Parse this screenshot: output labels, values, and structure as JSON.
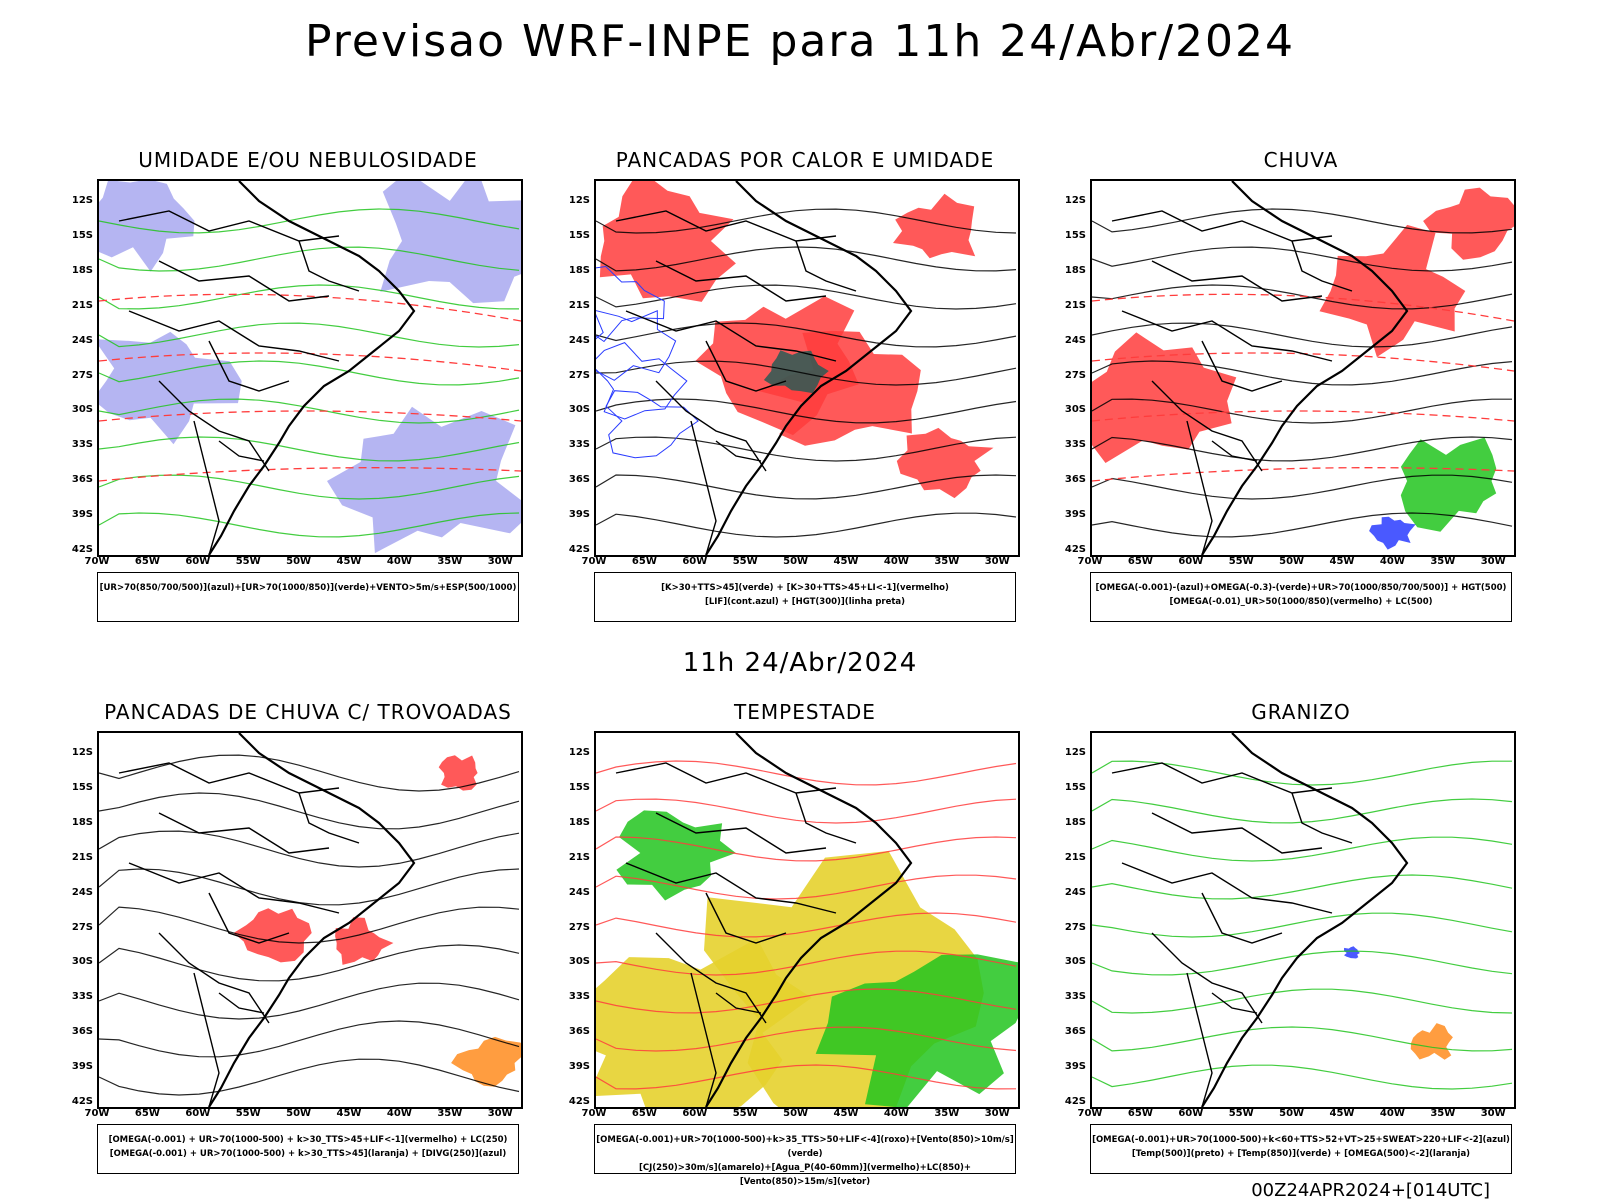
{
  "header": {
    "title": "Previsao WRF-INPE  para 11h 24/Abr/2024",
    "subtitle": "11h 24/Abr/2024",
    "footer": "00Z24APR2024+[014UTC]"
  },
  "axes": {
    "lat_labels": [
      "12S",
      "15S",
      "18S",
      "21S",
      "24S",
      "27S",
      "30S",
      "33S",
      "36S",
      "39S",
      "42S"
    ],
    "lon_labels": [
      "70W",
      "65W",
      "60W",
      "55W",
      "50W",
      "45W",
      "40W",
      "35W",
      "30W"
    ]
  },
  "colors": {
    "blue": "#2a3cff",
    "green": "#22c41e",
    "red": "#ff3c3c",
    "lavender": "#a8a8f0",
    "yellow": "#e6d22e",
    "orange": "#ff8c1e",
    "teal": "#2a5a55"
  },
  "panels": [
    {
      "title": "UMIDADE E/OU NEBULOSIDADE",
      "legend": [
        "[UR>70(850/700/500)](azul)+[UR>70(1000/850)](verde)+VENTO>5m/s+ESP(500/1000)"
      ]
    },
    {
      "title": "PANCADAS POR CALOR E UMIDADE",
      "legend": [
        "[K>30+TTS>45](verde)  +  [K>30+TTS>45+LI<-1](vermelho)",
        "[LIF](cont.azul)  +  [HGT(300)](linha preta)"
      ]
    },
    {
      "title": "CHUVA",
      "legend": [
        "[OMEGA(-0.001)-(azul)+OMEGA(-0.3)-(verde)+UR>70(1000/850/700/500)]  +  HGT(500)",
        "[OMEGA(-0.01)_UR>50(1000/850)(vermelho)  +  LC(500)"
      ]
    },
    {
      "title": "PANCADAS DE CHUVA C/ TROVOADAS",
      "legend": [
        "[OMEGA(-0.001) + UR>70(1000-500) + k>30_TTS>45+LIF<-1](vermelho) + LC(250)",
        "[OMEGA(-0.001) + UR>70(1000-500) + k>30_TTS>45](laranja) + [DIVG(250)](azul)"
      ]
    },
    {
      "title": "TEMPESTADE",
      "legend": [
        "[OMEGA(-0.001)+UR>70(1000-500)+k>35_TTS>50+LIF<-4](roxo)+[Vento(850)>10m/s](verde)",
        "[CJ(250)>30m/s](amarelo)+[Agua_P(40-60mm)](vermelho)+LC(850)+[Vento(850)>15m/s](vetor)"
      ]
    },
    {
      "title": "GRANIZO",
      "legend": [
        "[OMEGA(-0.001)+UR>70(1000-500)+k<60+TTS>52+VT>25+SWEAT>220+LIF<-2](azul)",
        "[Temp(500)](preto) + [Temp(850)](verde) + [OMEGA(500)<-2](laranja)"
      ]
    }
  ]
}
